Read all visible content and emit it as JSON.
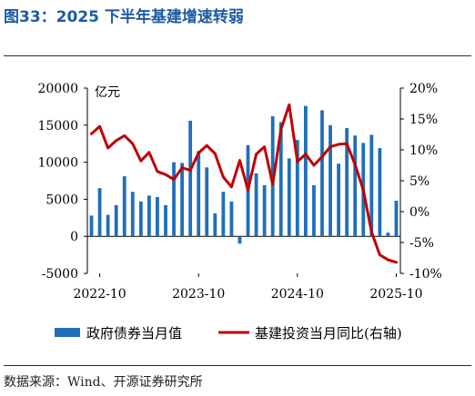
{
  "figure": {
    "title": "图33：2025 下半年基建增速转弱",
    "source": "数据来源：Wind、开源证券研究所"
  },
  "chart_data": {
    "type": "bar+line",
    "title": "图33：2025 下半年基建增速转弱",
    "unit_label": "亿元",
    "x_tick_labels": [
      "2022-10",
      "2023-10",
      "2024-10",
      "2025-10"
    ],
    "x": [
      "2022-09",
      "2022-10",
      "2022-11",
      "2022-12",
      "2023-01",
      "2023-02",
      "2023-03",
      "2023-04",
      "2023-05",
      "2023-06",
      "2023-07",
      "2023-08",
      "2023-09",
      "2023-10",
      "2023-11",
      "2023-12",
      "2024-01",
      "2024-02",
      "2024-03",
      "2024-04",
      "2024-05",
      "2024-06",
      "2024-07",
      "2024-08",
      "2024-09",
      "2024-10",
      "2024-11",
      "2024-12",
      "2025-01",
      "2025-02",
      "2025-03",
      "2025-04",
      "2025-05",
      "2025-06",
      "2025-07",
      "2025-08",
      "2025-09",
      "2025-10"
    ],
    "y_left": {
      "ylim": [
        -5000,
        20000
      ],
      "ticks": [
        -5000,
        0,
        5000,
        10000,
        15000,
        20000
      ]
    },
    "y_right": {
      "ylim": [
        -10,
        20
      ],
      "ticks": [
        "-10%",
        "-5%",
        "0%",
        "5%",
        "10%",
        "15%",
        "20%"
      ]
    },
    "legend_position": "bottom",
    "series": [
      {
        "name": "政府债券当月值",
        "axis": "left",
        "kind": "bar",
        "color": "#1f6fb8",
        "values": [
          2800,
          6500,
          2900,
          4200,
          8100,
          6000,
          4700,
          5500,
          5300,
          4200,
          10000,
          9900,
          15600,
          11500,
          9300,
          3100,
          6000,
          4700,
          -1000,
          12300,
          8500,
          6900,
          16200,
          15400,
          10500,
          13000,
          17600,
          6900,
          17000,
          15000,
          9800,
          14600,
          13600,
          12600,
          13700,
          11900,
          500,
          4800
        ]
      },
      {
        "name": "基建投资当月同比(右轴)",
        "axis": "right",
        "kind": "line",
        "color": "#c00000",
        "values": [
          12.6,
          13.8,
          10.3,
          11.5,
          12.3,
          11.0,
          8.2,
          9.6,
          6.5,
          6.0,
          5.2,
          7.1,
          6.7,
          9.5,
          10.7,
          9.4,
          5.6,
          4.0,
          8.3,
          3.5,
          9.3,
          10.5,
          4.4,
          13.3,
          17.3,
          8.1,
          9.3,
          7.5,
          8.9,
          10.5,
          10.9,
          11.0,
          7.6,
          3.5,
          -3.3,
          -7.0,
          -7.8,
          -8.2
        ]
      }
    ]
  }
}
